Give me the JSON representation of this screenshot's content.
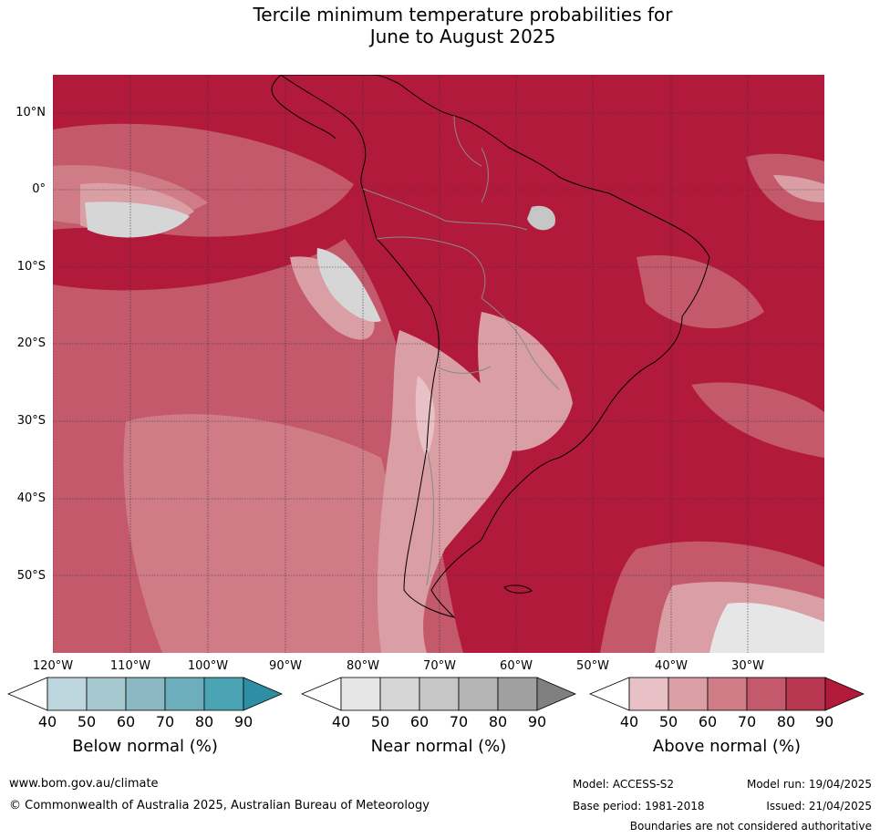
{
  "title_line1": "Tercile minimum temperature probabilities for",
  "title_line2": "June to August 2025",
  "lat_labels": [
    "10°N",
    "0°",
    "10°S",
    "20°S",
    "30°S",
    "40°S",
    "50°S"
  ],
  "lon_labels": [
    "120°W",
    "110°W",
    "100°W",
    "90°W",
    "80°W",
    "70°W",
    "60°W",
    "50°W",
    "40°W",
    "30°W"
  ],
  "colorbars": [
    {
      "title": "Below normal (%)",
      "ticks": [
        "40",
        "50",
        "60",
        "70",
        "80",
        "90"
      ],
      "colors": [
        "#ffffff",
        "#bdd6dd",
        "#a6c8cf",
        "#8bb8c3",
        "#6daebd",
        "#4ba4b4",
        "#2e8ea3"
      ]
    },
    {
      "title": "Near normal (%)",
      "ticks": [
        "40",
        "50",
        "60",
        "70",
        "80",
        "90"
      ],
      "colors": [
        "#ffffff",
        "#e6e6e6",
        "#d6d6d6",
        "#c6c6c6",
        "#b4b4b4",
        "#a0a0a0",
        "#808080"
      ]
    },
    {
      "title": "Above normal (%)",
      "ticks": [
        "40",
        "50",
        "60",
        "70",
        "80",
        "90"
      ],
      "colors": [
        "#ffffff",
        "#e8c1c6",
        "#da9ea5",
        "#cf7c86",
        "#c3596a",
        "#b73650",
        "#b11a3a"
      ]
    }
  ],
  "footer": {
    "website": "www.bom.gov.au/climate",
    "copyright": "© Commonwealth of Australia 2025, Australian Bureau of Meteorology",
    "model": "Model: ACCESS-S2",
    "base_period": "Base period: 1981-2018",
    "model_run": "Model run: 19/04/2025",
    "issued": "Issued: 21/04/2025",
    "disclaimer": "Boundaries are not considered authoritative"
  }
}
